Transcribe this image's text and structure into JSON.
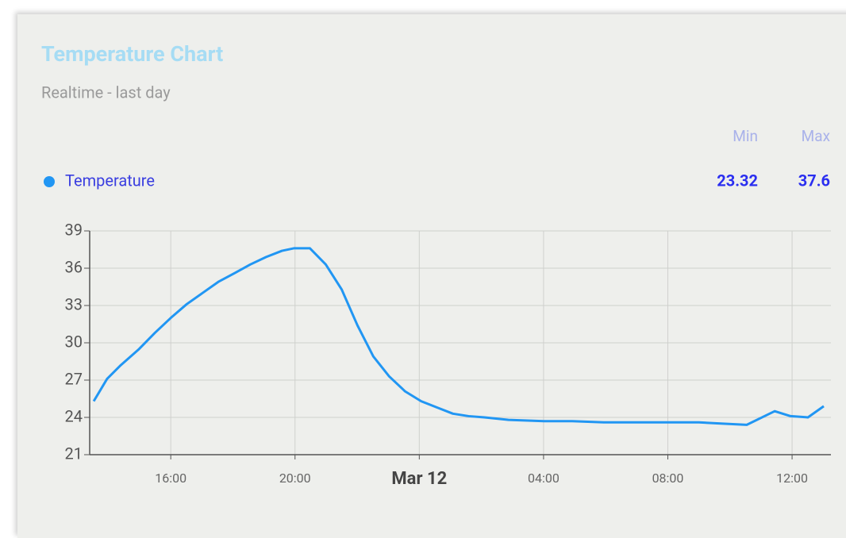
{
  "card": {
    "title": "Temperature Chart",
    "subtitle": "Realtime - last day",
    "min_label": "Min",
    "max_label": "Max",
    "min": 23.32,
    "max": 37.6
  },
  "chart_data": {
    "type": "line",
    "x": [
      13.52,
      13.95,
      14.39,
      14.98,
      15.49,
      16.0,
      16.51,
      17.02,
      17.53,
      18.05,
      18.56,
      19.07,
      19.58,
      19.96,
      20.48,
      20.99,
      21.5,
      22.01,
      22.52,
      23.03,
      23.54,
      24.06,
      24.57,
      25.08,
      25.59,
      26.1,
      26.87,
      28.02,
      28.92,
      29.94,
      30.96,
      31.98,
      33.0,
      33.77,
      34.54,
      35.44,
      35.95,
      36.51,
      37.02
    ],
    "series": [
      {
        "name": "Temperature",
        "color": "#2196f3",
        "values": [
          25.3,
          27.1,
          28.2,
          29.5,
          30.8,
          32.0,
          33.1,
          34.0,
          34.9,
          35.6,
          36.3,
          36.9,
          37.4,
          37.6,
          37.6,
          36.3,
          34.3,
          31.4,
          28.9,
          27.3,
          26.1,
          25.3,
          24.8,
          24.3,
          24.1,
          24.0,
          23.8,
          23.7,
          23.7,
          23.6,
          23.6,
          23.6,
          23.6,
          23.5,
          23.4,
          24.5,
          24.1,
          24.0,
          24.9
        ]
      }
    ],
    "xlim": [
      13.39,
      37.25
    ],
    "xticks": [
      {
        "value": 16,
        "label": "16:00"
      },
      {
        "value": 20,
        "label": "20:00"
      },
      {
        "value": 24,
        "label": "Mar 12"
      },
      {
        "value": 28,
        "label": "04:00"
      },
      {
        "value": 32,
        "label": "08:00"
      },
      {
        "value": 36,
        "label": "12:00"
      }
    ],
    "ylim": [
      21,
      39
    ],
    "yticks": [
      21,
      24,
      27,
      30,
      33,
      36,
      39
    ],
    "grid": true
  }
}
